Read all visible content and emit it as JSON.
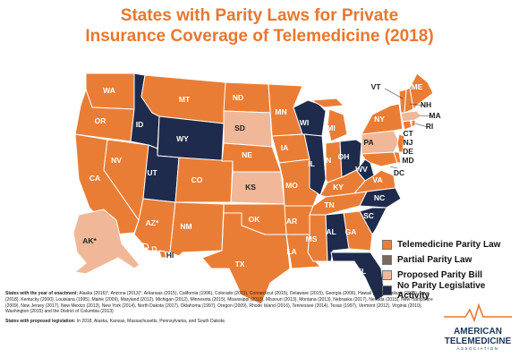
{
  "title_line1": "States with Parity Laws for Private",
  "title_line2": "Insurance Coverage of Telemedicine (2018)",
  "colors": {
    "parity": "#ea7d35",
    "partial": "#7a6a5e",
    "proposed": "#f0b898",
    "none": "#1f2b4d"
  },
  "legend": [
    {
      "label": "Telemedicine Parity Law",
      "color": "#ea7d35"
    },
    {
      "label": "Partial Parity Law",
      "color": "#7a6a5e"
    },
    {
      "label": "Proposed Parity Bill",
      "color": "#f0b898"
    },
    {
      "label": "No Parity Legislative Activity",
      "color": "#1f2b4d"
    }
  ],
  "states": {
    "WA": "WA",
    "OR": "OR",
    "CA": "CA",
    "NV": "NV",
    "ID": "ID",
    "MT": "MT",
    "WY": "WY",
    "UT": "UT",
    "AZ": "AZ*",
    "CO": "CO",
    "NM": "NM",
    "ND": "ND",
    "SD": "SD",
    "NE": "NE",
    "KS": "KS",
    "OK": "OK",
    "TX": "TX",
    "MN": "MN",
    "IA": "IA",
    "MO": "MO",
    "AR": "AR",
    "LA": "LA",
    "WI": "WI",
    "IL": "IL",
    "MS": "MS",
    "MI": "MI",
    "IN": "IN",
    "KY": "KY",
    "TN": "TN",
    "AL": "AL",
    "GA": "GA",
    "FL": "FL",
    "OH": "OH",
    "WV": "WV",
    "VA": "VA",
    "NC": "NC",
    "SC": "SC",
    "PA": "PA",
    "NY": "NY",
    "VT": "VT",
    "ME": "ME",
    "NH": "NH",
    "MA": "MA",
    "RI": "RI",
    "CT": "CT",
    "NJ": "NJ",
    "DE": "DE",
    "MD": "MD",
    "DC": "DC",
    "AK": "AK*",
    "HI": "HI"
  },
  "enactment_label": "States with the year of enactment:",
  "enactment_text": "Alaska (2016)*, Arizona (2013)*, Arkansas (2015), California (1996), Colorado (2001), Connecticut (2015), Delaware (2015), Georgia (2006), Hawaii (1999), Indiana (2015), Iowa (2018), Kentucky (2000), Louisiana (1995), Maine (2009), Maryland (2012), Michigan (2012), Minnesota (2015), Mississippi (2013), Missouri (2013), Montana (2013), Nebraska (2017), Nevada (2015), New Hampshire (2009), New Jersey (2017), New Mexico (2013), New York (2014), North Dakota (2017), Oklahoma (1997), Oregon (2009), Rhode Island (2016), Tennessee (2014), Texas (1997), Vermont (2012), Virginia (2010), Washington (2015) and the District of Columbia (2013)",
  "proposed_label": "States with proposed legislation:",
  "proposed_text": "In 2018, Alaska, Kansas, Massachusetts, Pennsylvania, and South Dakota",
  "logo": {
    "line1": "AMERICAN",
    "line2": "TELEMEDICINE",
    "line3": "ASSOCIATION"
  }
}
